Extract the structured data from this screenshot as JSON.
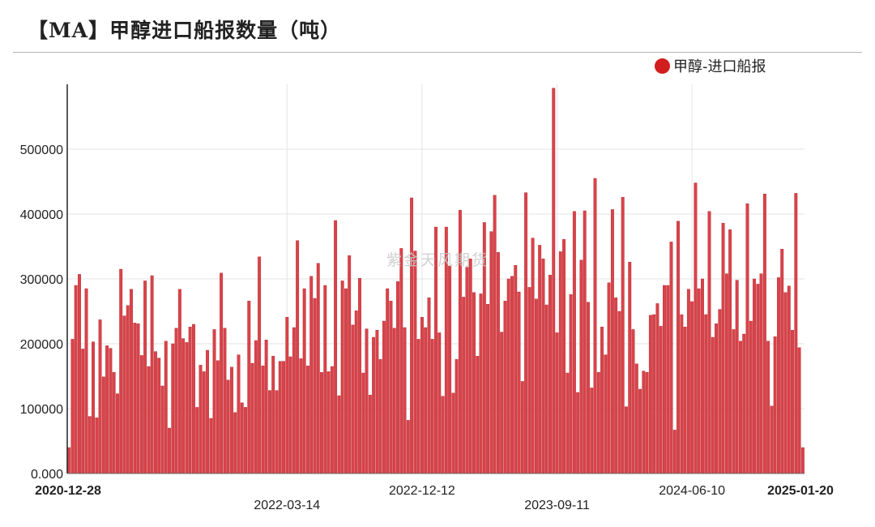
{
  "title": "【MA】甲醇进口船报数量（吨）",
  "watermark": "紫金天风期货",
  "colors": {
    "bar": "#d9434a",
    "bar_stroke": "#b3262c",
    "legend": "#d21e1e",
    "grid": "#e3e3e3"
  },
  "chart_data": {
    "type": "bar",
    "title": "【MA】甲醇进口船报数量（吨）",
    "xlabel": "",
    "ylabel": "",
    "ylim": [
      0,
      600000
    ],
    "grid": true,
    "legend_position": "top-right",
    "y_ticks": [
      "0.000",
      "100000",
      "200000",
      "300000",
      "400000",
      "500000"
    ],
    "x_ticks": [
      {
        "label": "2020-12-28",
        "index": 0,
        "bold": true,
        "row": 1
      },
      {
        "label": "2022-03-14",
        "index": 63,
        "bold": false,
        "row": 2
      },
      {
        "label": "2022-12-12",
        "index": 102,
        "bold": false,
        "row": 1
      },
      {
        "label": "2023-09-11",
        "index": 141,
        "bold": false,
        "row": 2
      },
      {
        "label": "2024-06-10",
        "index": 180,
        "bold": false,
        "row": 1
      },
      {
        "label": "2025-01-20",
        "index": 212,
        "bold": true,
        "row": 1
      }
    ],
    "series": [
      {
        "name": "甲醇-进口船报",
        "values": [
          40000,
          207000,
          290000,
          307000,
          192000,
          285000,
          88000,
          203000,
          86000,
          237000,
          149000,
          197000,
          193000,
          156000,
          123000,
          315000,
          243000,
          259000,
          284000,
          232000,
          231000,
          182000,
          297000,
          165000,
          305000,
          188000,
          178000,
          135000,
          204000,
          70000,
          200000,
          224000,
          284000,
          208000,
          202000,
          226000,
          230000,
          102000,
          167000,
          157000,
          190000,
          85000,
          222000,
          174000,
          309000,
          224000,
          144000,
          164000,
          94000,
          183000,
          109000,
          102000,
          266000,
          170000,
          205000,
          334000,
          166000,
          206000,
          128000,
          181000,
          128000,
          173000,
          173000,
          241000,
          180000,
          225000,
          359000,
          177000,
          285000,
          166000,
          304000,
          270000,
          324000,
          156000,
          290000,
          157000,
          165000,
          390000,
          120000,
          297000,
          285000,
          336000,
          229000,
          251000,
          301000,
          155000,
          223000,
          121000,
          210000,
          221000,
          176000,
          235000,
          285000,
          266000,
          224000,
          296000,
          347000,
          225000,
          82000,
          425000,
          343000,
          207000,
          241000,
          225000,
          271000,
          207000,
          380000,
          217000,
          119000,
          380000,
          320000,
          124000,
          176000,
          406000,
          272000,
          318000,
          331000,
          279000,
          181000,
          277000,
          387000,
          261000,
          373000,
          429000,
          341000,
          218000,
          266000,
          300000,
          304000,
          321000,
          280000,
          142000,
          433000,
          287000,
          363000,
          269000,
          352000,
          331000,
          260000,
          306000,
          594000,
          217000,
          342000,
          361000,
          155000,
          276000,
          404000,
          125000,
          329000,
          405000,
          264000,
          132000,
          455000,
          156000,
          226000,
          183000,
          294000,
          407000,
          271000,
          250000,
          426000,
          103000,
          326000,
          222000,
          169000,
          130000,
          158000,
          156000,
          244000,
          245000,
          262000,
          227000,
          290000,
          290000,
          357000,
          67000,
          389000,
          245000,
          226000,
          284000,
          265000,
          448000,
          285000,
          300000,
          245000,
          404000,
          210000,
          231000,
          253000,
          386000,
          308000,
          376000,
          222000,
          298000,
          204000,
          215000,
          416000,
          235000,
          300000,
          292000,
          308000,
          431000,
          204000,
          104000,
          211000,
          302000,
          346000,
          279000,
          289000,
          221000,
          432000,
          194000,
          40000
        ]
      }
    ]
  }
}
